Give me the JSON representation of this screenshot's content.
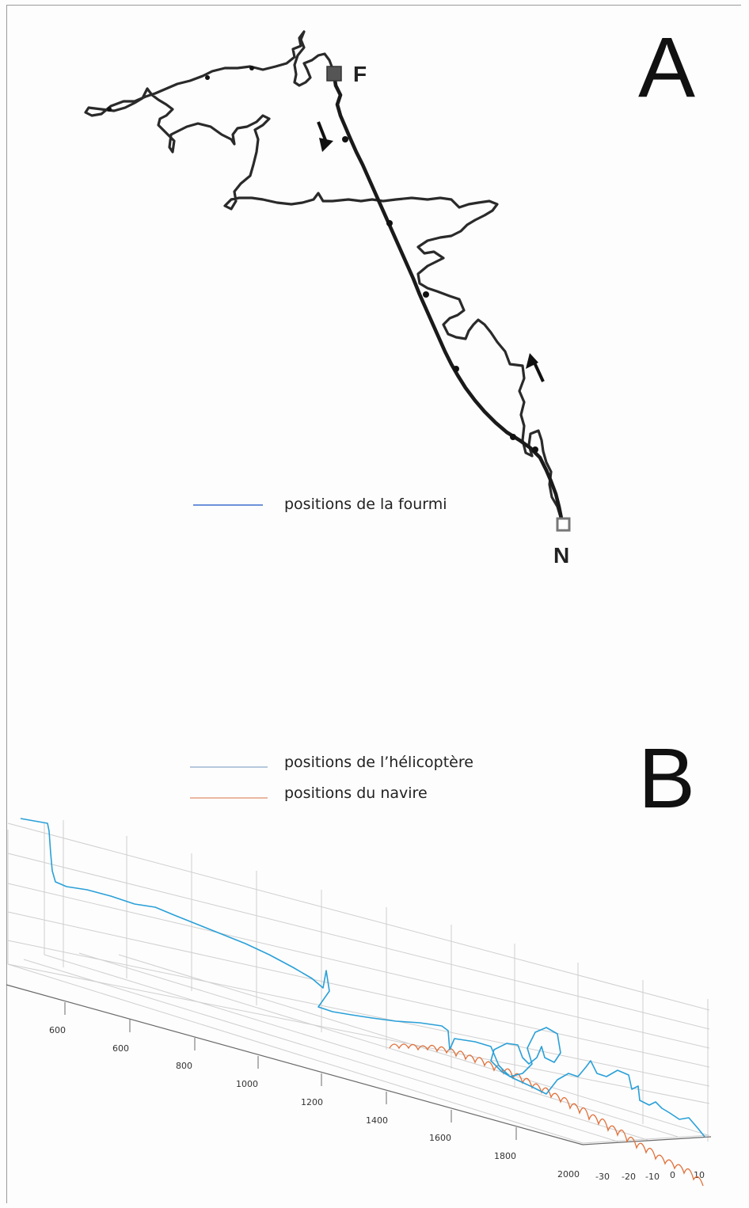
{
  "colors": {
    "ant_path": "#1e1e1e",
    "ant_legend": "#3f6fd0",
    "helicopter": "#2aa0d8",
    "ship": "#e0703a",
    "grid": "#cfcfcf"
  },
  "chart_data": [
    {
      "panel": "A",
      "type": "line",
      "legend": [
        {
          "label": "positions de la fourmi",
          "color": "#3f6fd0"
        }
      ],
      "markers": [
        {
          "label": "F",
          "shape": "filled-square"
        },
        {
          "label": "N",
          "shape": "open-square"
        }
      ],
      "arrows": [
        "outbound toward nest (down)",
        "return toward feeder (up)"
      ],
      "grid": false,
      "series": [
        {
          "name": "positions de la fourmi",
          "description_values": "outbound meandering path from N to F and straight return from F to N"
        }
      ]
    },
    {
      "panel": "B",
      "type": "line",
      "legend": [
        {
          "label": "positions de l’hélicoptère",
          "color": "#2aa0d8"
        },
        {
          "label": "positions du navire",
          "color": "#e0703a"
        }
      ],
      "x_ticks": [
        "600",
        "600",
        "800",
        "1000",
        "1200",
        "1400",
        "1600",
        "1800",
        "2000"
      ],
      "y_ticks": [
        "-30",
        "-20",
        "-10",
        "0",
        "10"
      ],
      "grid": true
    }
  ],
  "panelA": {
    "letter": "A",
    "legend_label": "positions de la fourmi",
    "marker_f": "F",
    "marker_n": "N"
  },
  "panelB": {
    "letter": "B",
    "legend_heli": "positions de l’hélicoptère",
    "legend_ship": "positions du navire",
    "x_ticks": [
      "600",
      "600",
      "800",
      "1000",
      "1200",
      "1400",
      "1600",
      "1800",
      "2000"
    ],
    "y_ticks": [
      "-30",
      "-20",
      "-10",
      "0",
      "10"
    ]
  }
}
